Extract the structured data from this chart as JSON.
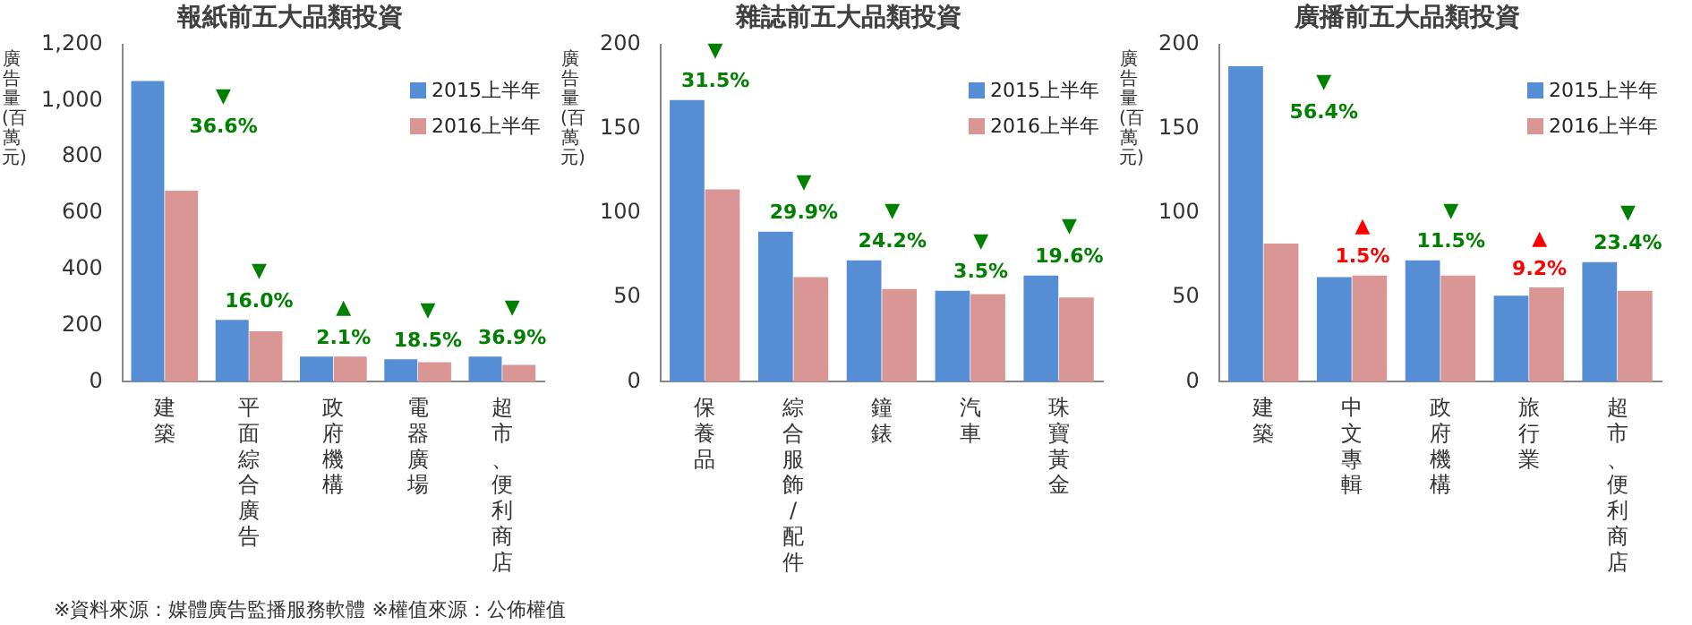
{
  "chart_data": [
    {
      "type": "bar",
      "title": "報紙前五大品類投資",
      "ylabel": "廣告量(百萬元)",
      "categories": [
        "建築",
        "平面綜合廣告",
        "政府機構",
        "電器廣場",
        "超市、便利商店"
      ],
      "series": [
        {
          "name": "2015上半年",
          "color": "#558ed5",
          "values": [
            1070,
            220,
            90,
            80,
            90
          ]
        },
        {
          "name": "2016上半年",
          "color": "#d99694",
          "values": [
            680,
            180,
            90,
            70,
            60
          ]
        }
      ],
      "ylim": [
        0,
        1200
      ],
      "yticks": [
        0,
        200,
        400,
        600,
        800,
        {
          "value": 1000,
          "label": "1,000"
        },
        {
          "value": 1200,
          "label": "1,200"
        }
      ],
      "legend": "top right",
      "annotations": [
        "▼\n36.6%",
        "▼\n16.0%",
        "▲\n2.1%",
        "▼\n18.5%",
        "▼\n36.9%",
        "※資料來源：媒體廣告監播服務軟體 ※權值來源：公佈權值"
      ]
    },
    {
      "type": "bar",
      "title": "雜誌前五大品類投資",
      "ylabel": "廣告量(百萬元)",
      "categories": [
        "保養品",
        "綜合服飾/配件",
        "鐘錶",
        "汽車",
        "珠寶黃金"
      ],
      "series": [
        {
          "name": "2015上半年",
          "color": "#558ed5",
          "values": [
            167,
            89,
            72,
            54,
            63
          ]
        },
        {
          "name": "2016上半年",
          "color": "#d99694",
          "values": [
            114,
            62,
            55,
            52,
            50
          ]
        }
      ],
      "ylim": [
        0,
        200
      ],
      "yticks": [
        0,
        50,
        100,
        150,
        200
      ],
      "legend": "top right",
      "annotations": [
        "▼\n31.5%",
        "▼\n29.9%",
        "▼\n24.2%",
        "▼\n3.5%",
        "▼\n19.6%"
      ]
    },
    {
      "type": "bar",
      "title": "廣播前五大品類投資",
      "ylabel": "廣告量(百萬元)",
      "categories": [
        "建築",
        "中文專輯",
        "政府機構",
        "旅行業",
        "超市、便利商店"
      ],
      "series": [
        {
          "name": "2015上半年",
          "color": "#558ed5",
          "values": [
            187,
            62,
            72,
            51,
            71
          ]
        },
        {
          "name": "2016上半年",
          "color": "#d99694",
          "values": [
            82,
            63,
            63,
            56,
            54
          ]
        }
      ],
      "ylim": [
        0,
        200
      ],
      "yticks": [
        0,
        50,
        100,
        150,
        200
      ],
      "legend": "top right",
      "annotations": [
        "▼\n56.4%",
        "▲\n1.5%",
        "▼\n11.5%",
        "▲\n9.2%",
        "▼\n23.4%"
      ]
    }
  ]
}
